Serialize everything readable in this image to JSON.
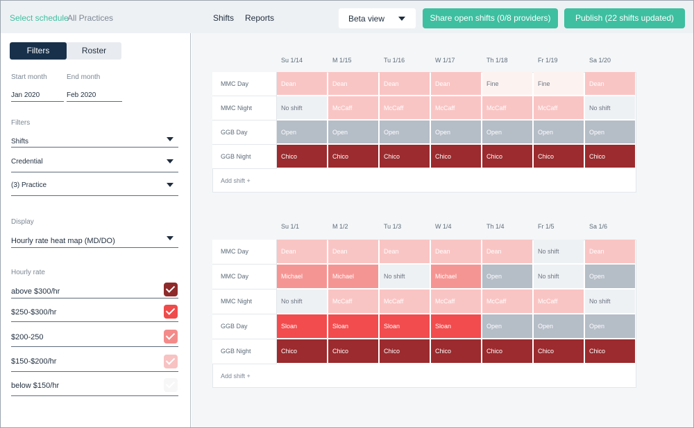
{
  "topbar": {
    "select_schedule": "Select schedule",
    "all_practices": "All Practices",
    "shifts": "Shifts",
    "reports": "Reports",
    "beta_view": "Beta view",
    "share_button": "Share open shifts (0/8 providers)",
    "publish_button": "Publish (22 shifts updated)"
  },
  "sidebar": {
    "tabs": {
      "filters": "Filters",
      "roster": "Roster"
    },
    "start_month_label": "Start month",
    "start_month_value": "Jan 2020",
    "end_month_label": "End month",
    "end_month_value": "Feb 2020",
    "filters_label": "Filters",
    "filters": [
      "Shifts",
      "Credential",
      "(3) Practice"
    ],
    "display_label": "Display",
    "display_value": "Hourly rate heat map (MD/DO)",
    "hourly_rate_label": "Hourly rate",
    "rates": [
      {
        "label": "above $300/hr",
        "color": "#8f2a2a",
        "checked": true
      },
      {
        "label": "$250-$300/hr",
        "color": "#f04b4b",
        "checked": true
      },
      {
        "label": "$200-250",
        "color": "#f48b8b",
        "checked": true
      },
      {
        "label": "$150-$200/hr",
        "color": "#f8c2c2",
        "checked": true
      },
      {
        "label": "below $150/hr",
        "color": "#f6f6f6",
        "checked": true
      }
    ]
  },
  "colors": {
    "accent": "#3dbfa0",
    "navy": "#18304a",
    "above300": "#9b2b2e",
    "r250_300": "#f24c4e",
    "r200_250": "#f59593",
    "r150_200": "#f9c5c4",
    "below150": "#fcf3f1",
    "open": "#b5bdc7",
    "no_shift": "#eef1f4"
  },
  "schedules": [
    {
      "days": [
        "Su 1/14",
        "M 1/15",
        "Tu 1/16",
        "W 1/17",
        "Th 1/18",
        "Fr 1/19",
        "Sa 1/20"
      ],
      "rows": [
        {
          "label": "MMC Day",
          "cells": [
            {
              "text": "Dean",
              "kind": "r150_200"
            },
            {
              "text": "Dean",
              "kind": "r150_200"
            },
            {
              "text": "Dean",
              "kind": "r150_200"
            },
            {
              "text": "Dean",
              "kind": "r150_200"
            },
            {
              "text": "Fine",
              "kind": "below150"
            },
            {
              "text": "Fine",
              "kind": "below150"
            },
            {
              "text": "Dean",
              "kind": "r150_200"
            }
          ]
        },
        {
          "label": "MMC Night",
          "cells": [
            {
              "text": "No shift",
              "kind": "no_shift"
            },
            {
              "text": "McCaff",
              "kind": "r150_200"
            },
            {
              "text": "McCaff",
              "kind": "r150_200"
            },
            {
              "text": "McCaff",
              "kind": "r150_200"
            },
            {
              "text": "McCaff",
              "kind": "r150_200"
            },
            {
              "text": "McCaff",
              "kind": "r150_200"
            },
            {
              "text": "No shift",
              "kind": "no_shift"
            }
          ]
        },
        {
          "label": "GGB Day",
          "cells": [
            {
              "text": "Open",
              "kind": "open"
            },
            {
              "text": "Open",
              "kind": "open"
            },
            {
              "text": "Open",
              "kind": "open"
            },
            {
              "text": "Open",
              "kind": "open"
            },
            {
              "text": "Open",
              "kind": "open"
            },
            {
              "text": "Open",
              "kind": "open"
            },
            {
              "text": "Open",
              "kind": "open"
            }
          ]
        },
        {
          "label": "GGB Night",
          "cells": [
            {
              "text": "Chico",
              "kind": "above300"
            },
            {
              "text": "Chico",
              "kind": "above300"
            },
            {
              "text": "Chico",
              "kind": "above300"
            },
            {
              "text": "Chico",
              "kind": "above300"
            },
            {
              "text": "Chico",
              "kind": "above300"
            },
            {
              "text": "Chico",
              "kind": "above300"
            },
            {
              "text": "Chico",
              "kind": "above300"
            }
          ]
        }
      ],
      "add_shift": "Add shift +"
    },
    {
      "days": [
        "Su 1/1",
        "M 1/2",
        "Tu 1/3",
        "W 1/4",
        "Th 1/4",
        "Fr 1/5",
        "Sa 1/6"
      ],
      "rows": [
        {
          "label": "MMC Day",
          "cells": [
            {
              "text": "Dean",
              "kind": "r150_200"
            },
            {
              "text": "Dean",
              "kind": "r150_200"
            },
            {
              "text": "Dean",
              "kind": "r150_200"
            },
            {
              "text": "Dean",
              "kind": "r150_200"
            },
            {
              "text": "Dean",
              "kind": "r150_200"
            },
            {
              "text": "No shift",
              "kind": "no_shift"
            },
            {
              "text": "Dean",
              "kind": "r150_200"
            }
          ]
        },
        {
          "label": "MMC Day",
          "cells": [
            {
              "text": "Michael",
              "kind": "r200_250"
            },
            {
              "text": "Michael",
              "kind": "r200_250"
            },
            {
              "text": "No shift",
              "kind": "no_shift"
            },
            {
              "text": "Michael",
              "kind": "r200_250"
            },
            {
              "text": "Open",
              "kind": "open"
            },
            {
              "text": "No shift",
              "kind": "no_shift"
            },
            {
              "text": "Open",
              "kind": "open"
            }
          ]
        },
        {
          "label": "MMC Night",
          "cells": [
            {
              "text": "No shift",
              "kind": "no_shift"
            },
            {
              "text": "McCaff",
              "kind": "r150_200"
            },
            {
              "text": "McCaff",
              "kind": "r150_200"
            },
            {
              "text": "McCaff",
              "kind": "r150_200"
            },
            {
              "text": "McCaff",
              "kind": "r150_200"
            },
            {
              "text": "McCaff",
              "kind": "r150_200"
            },
            {
              "text": "No shift",
              "kind": "no_shift"
            }
          ]
        },
        {
          "label": "GGB Day",
          "cells": [
            {
              "text": "Sloan",
              "kind": "r250_300"
            },
            {
              "text": "Sloan",
              "kind": "r250_300"
            },
            {
              "text": "Sloan",
              "kind": "r250_300"
            },
            {
              "text": "Sloan",
              "kind": "r250_300"
            },
            {
              "text": "Open",
              "kind": "open"
            },
            {
              "text": "Open",
              "kind": "open"
            },
            {
              "text": "Open",
              "kind": "open"
            }
          ]
        },
        {
          "label": "GGB Night",
          "cells": [
            {
              "text": "Chico",
              "kind": "above300"
            },
            {
              "text": "Chico",
              "kind": "above300"
            },
            {
              "text": "Chico",
              "kind": "above300"
            },
            {
              "text": "Chico",
              "kind": "above300"
            },
            {
              "text": "Chico",
              "kind": "above300"
            },
            {
              "text": "Chico",
              "kind": "above300"
            },
            {
              "text": "Chico",
              "kind": "above300"
            }
          ]
        }
      ],
      "add_shift": "Add shift +"
    }
  ]
}
